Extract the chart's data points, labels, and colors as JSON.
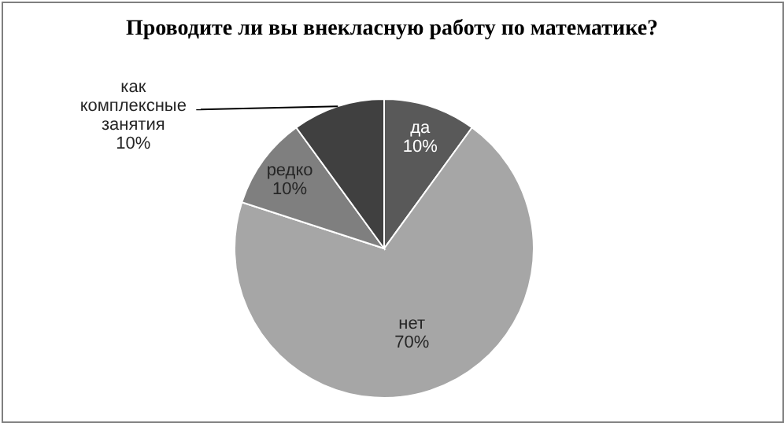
{
  "chart_data": {
    "type": "pie",
    "title": "Проводите ли вы внекласную работу по математике?",
    "categories": [
      "да",
      "нет",
      "редко",
      "как комплексные занятия"
    ],
    "values": [
      10,
      70,
      10,
      10
    ],
    "value_labels": [
      "10%",
      "70%",
      "10%",
      "10%"
    ],
    "colors": [
      "#595959",
      "#a6a6a6",
      "#7f7f7f",
      "#404040"
    ],
    "legend": false
  }
}
